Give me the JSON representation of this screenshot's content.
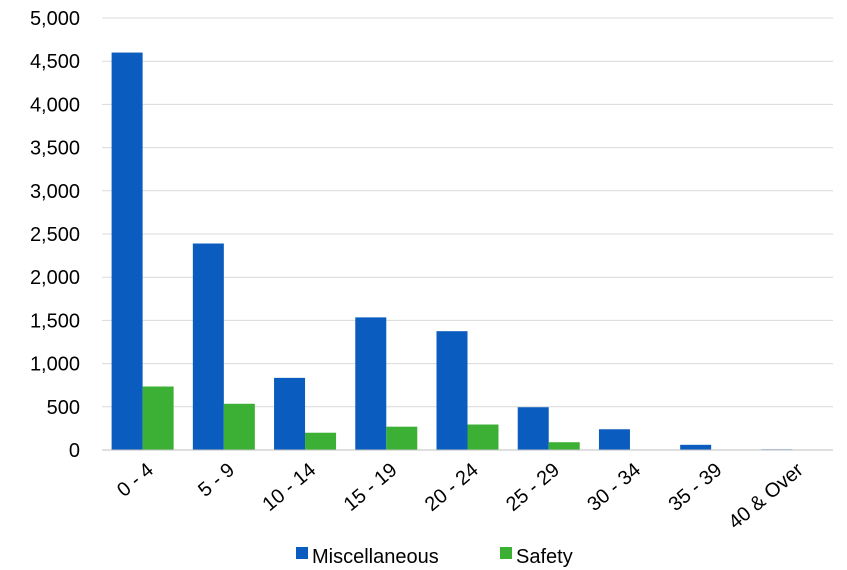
{
  "chart_data": {
    "type": "bar",
    "title": "",
    "xlabel": "",
    "ylabel": "",
    "categories": [
      "0 - 4",
      "5 - 9",
      "10 - 14",
      "15 - 19",
      "20 - 24",
      "25 - 29",
      "30 - 34",
      "35 - 39",
      "40 & Over"
    ],
    "series": [
      {
        "name": "Miscellaneous",
        "color": "#0a5cbf",
        "values": [
          4600,
          2390,
          835,
          1535,
          1375,
          495,
          240,
          60,
          8
        ]
      },
      {
        "name": "Safety",
        "color": "#3cb034",
        "values": [
          735,
          535,
          200,
          270,
          295,
          90,
          0,
          0,
          0
        ]
      }
    ],
    "ylim": [
      0,
      5000
    ],
    "yticks": [
      0,
      500,
      1000,
      1500,
      2000,
      2500,
      3000,
      3500,
      4000,
      4500,
      5000
    ],
    "ytick_labels": [
      "0",
      "500",
      "1,000",
      "1,500",
      "2,000",
      "2,500",
      "3,000",
      "3,500",
      "4,000",
      "4,500",
      "5,000"
    ],
    "grid": true,
    "gridline_color": "#d9d9d9",
    "legend_position": "bottom"
  }
}
